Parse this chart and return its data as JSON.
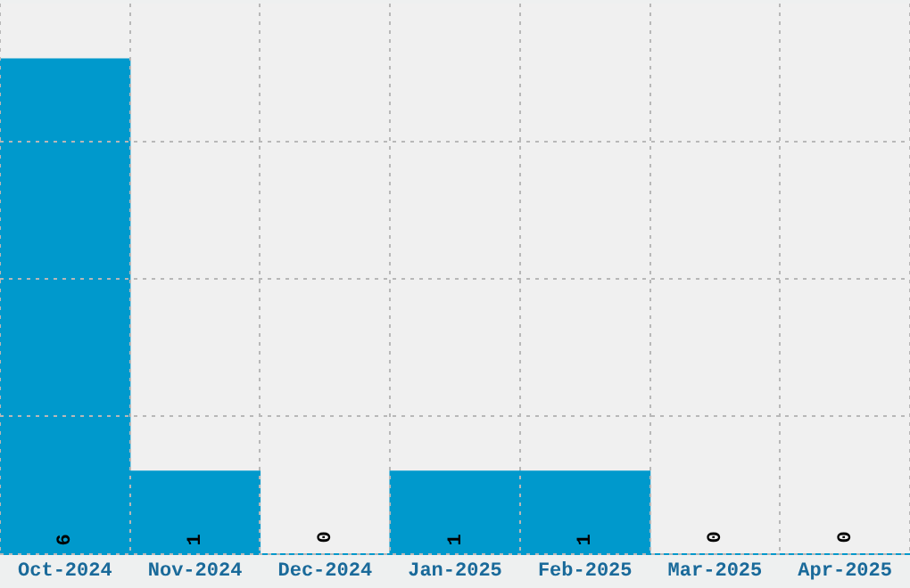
{
  "chart_data": {
    "type": "bar",
    "categories": [
      "Oct-2024",
      "Nov-2024",
      "Dec-2024",
      "Jan-2025",
      "Feb-2025",
      "Mar-2025",
      "Apr-2025"
    ],
    "values": [
      6,
      1,
      0,
      1,
      1,
      0,
      0
    ],
    "color": "#0099cc",
    "ylim": [
      0,
      6.67
    ],
    "yticks": [
      {
        "value": 0,
        "label": null
      },
      {
        "value": 1.667,
        "label": null
      },
      {
        "value": 3.333,
        "label": null
      },
      {
        "value": 5,
        "label": null
      }
    ],
    "tick_labels": "x",
    "grid": true,
    "data_labels": true
  }
}
